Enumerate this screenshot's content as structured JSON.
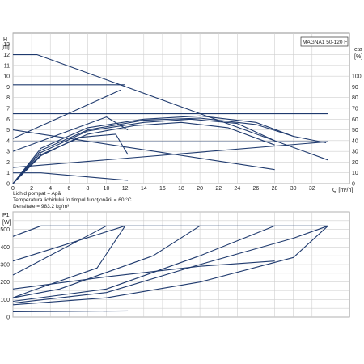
{
  "chart_data": [
    {
      "type": "line",
      "model_label": "MAGNA1 50-120 F",
      "y_left_unit_top": "H",
      "y_left_unit_bottom": "[m]",
      "y_right_unit_top": "eta",
      "y_right_unit_bottom": "[%]",
      "x_unit_label": "Q [m³/h]",
      "xlim": [
        0,
        36
      ],
      "ylim_left": [
        0,
        14
      ],
      "ylim_right": [
        0,
        140
      ],
      "x_ticks": [
        0,
        2,
        4,
        6,
        8,
        10,
        12,
        14,
        16,
        18,
        20,
        22,
        24,
        26,
        28,
        30,
        32
      ],
      "y_left_ticks": [
        0,
        1,
        2,
        3,
        4,
        5,
        6,
        7,
        8,
        9,
        10,
        11,
        12,
        13
      ],
      "y_right_ticks": [
        0,
        10,
        20,
        30,
        40,
        50,
        60,
        70,
        80,
        90,
        100
      ],
      "grid": true,
      "notes": [
        "Lichid pompat = Apă",
        "Temperatura lichidului în timpul funcţionării = 60 °C",
        "Densitate = 983.2 kg/m³"
      ],
      "series": [
        {
          "values": [
            [
              0,
              12
            ],
            [
              2.6,
              12
            ],
            [
              33.7,
              2.2
            ]
          ]
        },
        {
          "values": [
            [
              0,
              9.2
            ],
            [
              12,
              9.2
            ]
          ]
        },
        {
          "values": [
            [
              0,
              6.5
            ],
            [
              33.7,
              6.5
            ]
          ]
        },
        {
          "values": [
            [
              0,
              3.9
            ],
            [
              33.7,
              3.9
            ]
          ]
        },
        {
          "values": [
            [
              0,
              4.2
            ],
            [
              11.5,
              8.7
            ]
          ]
        },
        {
          "values": [
            [
              0,
              3.0
            ],
            [
              10,
              6.2
            ],
            [
              12.3,
              5.0
            ]
          ]
        },
        {
          "values": [
            [
              0,
              1.5
            ],
            [
              33.7,
              3.9
            ]
          ]
        },
        {
          "values": [
            [
              0,
              5.0
            ],
            [
              28,
              1.3
            ]
          ]
        },
        {
          "values": [
            [
              0,
              1.0
            ],
            [
              3,
              1.0
            ],
            [
              12.3,
              0.3
            ]
          ]
        },
        {
          "values": [
            [
              0,
              0
            ],
            [
              3,
              33
            ],
            [
              8,
              52
            ],
            [
              14,
              60
            ],
            [
              20,
              63
            ],
            [
              26,
              57
            ],
            [
              30,
              44
            ],
            [
              33.5,
              38
            ]
          ]
        },
        {
          "values": [
            [
              0,
              0
            ],
            [
              3,
              31
            ],
            [
              8,
              50
            ],
            [
              14,
              59
            ],
            [
              20,
              61
            ],
            [
              26,
              55
            ],
            [
              30,
              44
            ]
          ]
        },
        {
          "values": [
            [
              0,
              0
            ],
            [
              3,
              29
            ],
            [
              8,
              49
            ],
            [
              14,
              57
            ],
            [
              19,
              60
            ],
            [
              24,
              56
            ],
            [
              28,
              40
            ]
          ]
        },
        {
          "values": [
            [
              0,
              0
            ],
            [
              3,
              27
            ],
            [
              8,
              46
            ],
            [
              13,
              54
            ],
            [
              18,
              57
            ],
            [
              23,
              52
            ],
            [
              28,
              36
            ]
          ]
        },
        {
          "values": [
            [
              0,
              0
            ],
            [
              3,
              26
            ],
            [
              7,
              43
            ],
            [
              11,
              46
            ],
            [
              12.3,
              27
            ]
          ]
        }
      ]
    },
    {
      "type": "line",
      "y_unit_top": "P1",
      "y_unit_bottom": "[W]",
      "xlim": [
        0,
        36
      ],
      "ylim": [
        0,
        600
      ],
      "y_ticks": [
        0,
        100,
        200,
        300,
        400,
        500
      ],
      "grid": true,
      "series": [
        {
          "values": [
            [
              0,
              460
            ],
            [
              3,
              520
            ],
            [
              33.7,
              520
            ]
          ]
        },
        {
          "values": [
            [
              0,
              320
            ],
            [
              12,
              520
            ]
          ]
        },
        {
          "values": [
            [
              0,
              240
            ],
            [
              10,
              520
            ]
          ]
        },
        {
          "values": [
            [
              0,
              110
            ],
            [
              2,
              150
            ],
            [
              9,
              280
            ],
            [
              12,
              520
            ]
          ]
        },
        {
          "values": [
            [
              0,
              110
            ],
            [
              5,
              160
            ],
            [
              15,
              350
            ],
            [
              20,
              520
            ]
          ]
        },
        {
          "values": [
            [
              0,
              90
            ],
            [
              10,
              160
            ],
            [
              20,
              350
            ],
            [
              28,
              520
            ]
          ]
        },
        {
          "values": [
            [
              0,
              80
            ],
            [
              10,
              140
            ],
            [
              20,
              300
            ],
            [
              30,
              450
            ],
            [
              33.7,
              520
            ]
          ]
        },
        {
          "values": [
            [
              0,
              160
            ],
            [
              10,
              230
            ],
            [
              20,
              290
            ],
            [
              28,
              320
            ]
          ]
        },
        {
          "values": [
            [
              0,
              70
            ],
            [
              10,
              110
            ],
            [
              20,
              200
            ],
            [
              30,
              340
            ],
            [
              33.7,
              520
            ]
          ]
        },
        {
          "values": [
            [
              0,
              30
            ],
            [
              12.3,
              35
            ]
          ]
        }
      ]
    }
  ]
}
